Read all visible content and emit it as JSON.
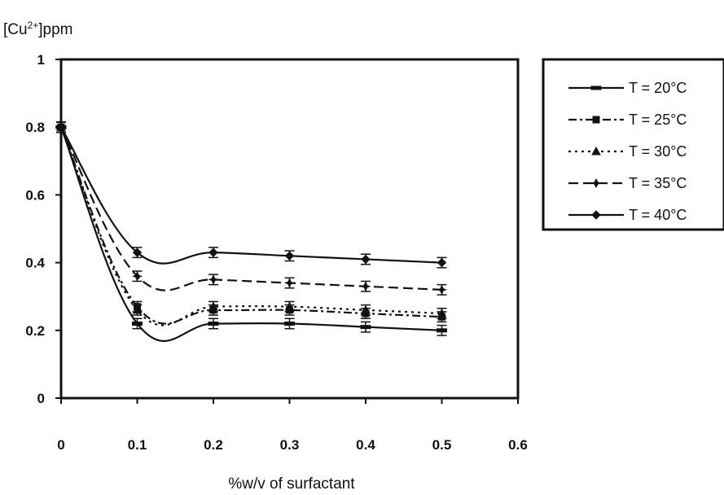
{
  "chart_data": {
    "type": "line",
    "ylabel": {
      "prefix": "[Cu",
      "sup": "2+",
      "suffix": "]ppm"
    },
    "xlabel": "%w/v of surfactant",
    "xlim": [
      0,
      0.6
    ],
    "ylim": [
      0,
      1
    ],
    "xticks": [
      "0",
      "0.1",
      "0.2",
      "0.3",
      "0.4",
      "0.5",
      "0.6"
    ],
    "yticks": [
      "0",
      "0.2",
      "0.4",
      "0.6",
      "0.8",
      "1"
    ],
    "xtick_values": [
      0,
      0.1,
      0.2,
      0.3,
      0.4,
      0.5,
      0.6
    ],
    "ytick_values": [
      0,
      0.2,
      0.4,
      0.6,
      0.8,
      1
    ],
    "grid": false,
    "legend_position": "right",
    "x": [
      0,
      0.1,
      0.2,
      0.3,
      0.4,
      0.5
    ],
    "series": [
      {
        "name": "T = 20°C",
        "values": [
          0.8,
          0.22,
          0.22,
          0.22,
          0.21,
          0.2
        ],
        "dash": "solid",
        "marker": "dash"
      },
      {
        "name": "T = 25°C",
        "values": [
          0.8,
          0.27,
          0.26,
          0.26,
          0.25,
          0.24
        ],
        "dash": "dashdot",
        "marker": "square"
      },
      {
        "name": "T = 30°C",
        "values": [
          0.8,
          0.26,
          0.27,
          0.27,
          0.26,
          0.25
        ],
        "dash": "dotted",
        "marker": "triangle"
      },
      {
        "name": "T = 35°C",
        "values": [
          0.8,
          0.36,
          0.35,
          0.34,
          0.33,
          0.32
        ],
        "dash": "dashed",
        "marker": "star"
      },
      {
        "name": "T = 40°C",
        "values": [
          0.8,
          0.43,
          0.43,
          0.42,
          0.41,
          0.4
        ],
        "dash": "solid",
        "marker": "diamond"
      }
    ],
    "error_bar": 0.015
  }
}
